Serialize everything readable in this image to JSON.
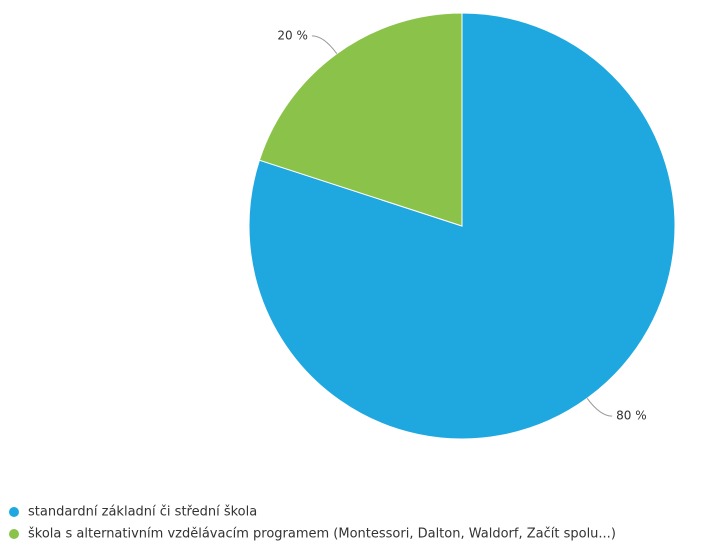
{
  "chart_data": {
    "type": "pie",
    "categories": [
      "standardní základní či střední škola",
      "škola s alternativním vzdělávacím programem (Montessori, Dalton, Waldorf, Začít spolu...)"
    ],
    "values": [
      80,
      20
    ],
    "value_labels": [
      "80 %",
      "20 %"
    ],
    "colors": [
      "#1fa8e0",
      "#8bc34a"
    ],
    "legend": "bottom-left"
  }
}
